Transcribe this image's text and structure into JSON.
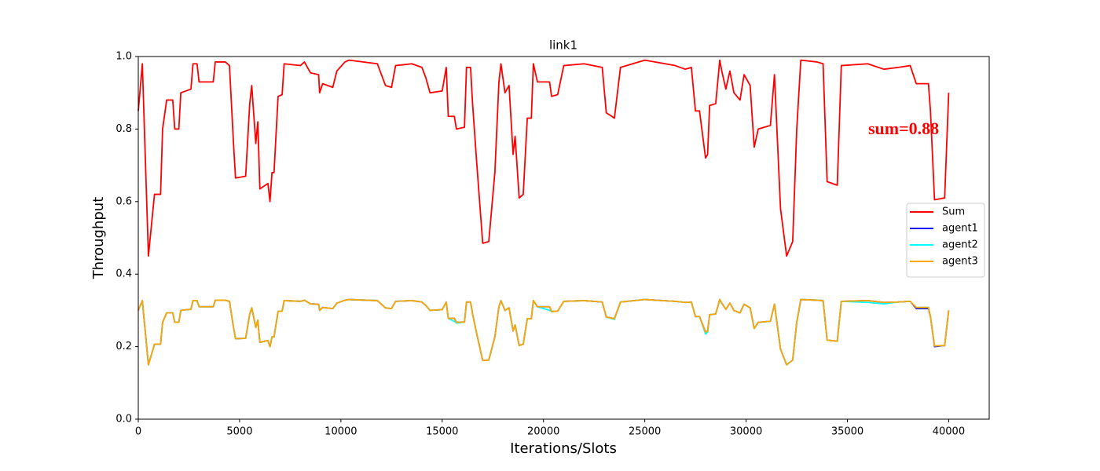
{
  "chart_data": {
    "type": "line",
    "title": "link1",
    "xlabel": "Iterations/Slots",
    "ylabel": "Throughput",
    "annotation": "sum=0.88",
    "xlim": [
      0,
      42000
    ],
    "xticks": [
      0,
      5000,
      10000,
      15000,
      20000,
      25000,
      30000,
      35000,
      40000
    ],
    "ylim": [
      0,
      1
    ],
    "yticks": [
      {
        "value": 0,
        "label": "0.0"
      },
      0.2,
      0.4,
      0.6,
      0.8,
      {
        "value": 1,
        "label": "1.0"
      }
    ],
    "legend": "center right",
    "x": [
      0,
      200,
      500,
      800,
      1100,
      1200,
      1400,
      1700,
      1800,
      2000,
      2100,
      2600,
      2700,
      2900,
      3000,
      3700,
      3800,
      4300,
      4500,
      4700,
      4800,
      5300,
      5500,
      5600,
      5800,
      5900,
      6000,
      6400,
      6500,
      6600,
      6700,
      6900,
      7100,
      7200,
      8000,
      8200,
      8500,
      8900,
      8950,
      9100,
      9600,
      9800,
      10200,
      10400,
      11800,
      12000,
      12200,
      12500,
      12700,
      13500,
      14000,
      14200,
      14400,
      15000,
      15200,
      15300,
      15600,
      15700,
      16100,
      16200,
      16400,
      16500,
      16700,
      17000,
      17300,
      17600,
      17800,
      17900,
      18100,
      18300,
      18500,
      18600,
      18800,
      19000,
      19200,
      19400,
      19500,
      19700,
      20300,
      20400,
      20700,
      21000,
      22000,
      22900,
      23100,
      23500,
      23800,
      25000,
      26500,
      27000,
      27300,
      27500,
      27700,
      28000,
      28100,
      28200,
      28500,
      28700,
      28800,
      29000,
      29200,
      29400,
      29700,
      29900,
      30200,
      30400,
      30600,
      31200,
      31400,
      31700,
      32000,
      32300,
      32500,
      32700,
      33500,
      33800,
      34000,
      34500,
      34700,
      36000,
      36800,
      37500,
      38100,
      38400,
      39000,
      39100,
      39300,
      39800,
      40000
    ],
    "series": [
      {
        "name": "Sum",
        "color": "#ff0000",
        "values": [
          0.85,
          0.98,
          0.45,
          0.62,
          0.62,
          0.8,
          0.88,
          0.88,
          0.8,
          0.8,
          0.9,
          0.91,
          0.98,
          0.98,
          0.93,
          0.93,
          0.985,
          0.985,
          0.975,
          0.76,
          0.665,
          0.67,
          0.87,
          0.92,
          0.76,
          0.82,
          0.635,
          0.65,
          0.6,
          0.68,
          0.68,
          0.89,
          0.895,
          0.98,
          0.975,
          0.985,
          0.955,
          0.95,
          0.9,
          0.925,
          0.915,
          0.96,
          0.985,
          0.99,
          0.98,
          0.95,
          0.92,
          0.915,
          0.975,
          0.98,
          0.97,
          0.94,
          0.9,
          0.905,
          0.97,
          0.835,
          0.835,
          0.8,
          0.805,
          0.97,
          0.97,
          0.87,
          0.71,
          0.485,
          0.49,
          0.68,
          0.93,
          0.98,
          0.9,
          0.92,
          0.73,
          0.78,
          0.61,
          0.62,
          0.83,
          0.83,
          0.98,
          0.93,
          0.93,
          0.89,
          0.895,
          0.975,
          0.98,
          0.97,
          0.845,
          0.83,
          0.97,
          0.99,
          0.975,
          0.965,
          0.97,
          0.85,
          0.85,
          0.72,
          0.73,
          0.865,
          0.87,
          0.99,
          0.96,
          0.91,
          0.96,
          0.9,
          0.88,
          0.95,
          0.92,
          0.75,
          0.8,
          0.81,
          0.95,
          0.58,
          0.45,
          0.49,
          0.8,
          0.99,
          0.985,
          0.98,
          0.655,
          0.645,
          0.975,
          0.98,
          0.965,
          0.97,
          0.975,
          0.925,
          0.925,
          0.85,
          0.605,
          0.61,
          0.9
        ]
      },
      {
        "name": "agent1",
        "color": "#0000ff",
        "values": [
          0.3,
          0.327,
          0.15,
          0.207,
          0.207,
          0.267,
          0.293,
          0.293,
          0.267,
          0.267,
          0.3,
          0.303,
          0.327,
          0.327,
          0.31,
          0.31,
          0.328,
          0.328,
          0.325,
          0.253,
          0.222,
          0.223,
          0.29,
          0.307,
          0.253,
          0.273,
          0.212,
          0.217,
          0.2,
          0.227,
          0.227,
          0.297,
          0.298,
          0.327,
          0.325,
          0.328,
          0.318,
          0.317,
          0.3,
          0.308,
          0.305,
          0.32,
          0.328,
          0.33,
          0.327,
          0.317,
          0.307,
          0.305,
          0.325,
          0.327,
          0.323,
          0.313,
          0.3,
          0.302,
          0.323,
          0.278,
          0.278,
          0.267,
          0.268,
          0.323,
          0.323,
          0.29,
          0.237,
          0.162,
          0.163,
          0.227,
          0.31,
          0.327,
          0.3,
          0.307,
          0.243,
          0.26,
          0.203,
          0.207,
          0.277,
          0.277,
          0.327,
          0.31,
          0.31,
          0.297,
          0.298,
          0.325,
          0.327,
          0.323,
          0.282,
          0.277,
          0.323,
          0.33,
          0.325,
          0.322,
          0.323,
          0.283,
          0.283,
          0.24,
          0.243,
          0.288,
          0.29,
          0.33,
          0.32,
          0.303,
          0.32,
          0.3,
          0.293,
          0.317,
          0.307,
          0.25,
          0.267,
          0.27,
          0.317,
          0.193,
          0.15,
          0.163,
          0.267,
          0.33,
          0.328,
          0.327,
          0.218,
          0.215,
          0.325,
          0.327,
          0.322,
          0.323,
          0.325,
          0.305,
          0.305,
          0.283,
          0.2,
          0.203,
          0.3
        ]
      },
      {
        "name": "agent2",
        "color": "#00ffff",
        "values": [
          0.3,
          0.327,
          0.15,
          0.207,
          0.207,
          0.267,
          0.293,
          0.293,
          0.267,
          0.267,
          0.3,
          0.303,
          0.327,
          0.327,
          0.31,
          0.31,
          0.328,
          0.328,
          0.325,
          0.253,
          0.222,
          0.223,
          0.29,
          0.307,
          0.253,
          0.273,
          0.212,
          0.217,
          0.2,
          0.227,
          0.227,
          0.297,
          0.298,
          0.327,
          0.325,
          0.328,
          0.318,
          0.317,
          0.3,
          0.308,
          0.305,
          0.32,
          0.328,
          0.33,
          0.327,
          0.317,
          0.307,
          0.305,
          0.325,
          0.327,
          0.323,
          0.313,
          0.3,
          0.302,
          0.323,
          0.278,
          0.27,
          0.265,
          0.268,
          0.323,
          0.323,
          0.29,
          0.237,
          0.162,
          0.163,
          0.227,
          0.31,
          0.327,
          0.3,
          0.307,
          0.243,
          0.26,
          0.203,
          0.207,
          0.277,
          0.277,
          0.327,
          0.31,
          0.3,
          0.297,
          0.298,
          0.325,
          0.327,
          0.323,
          0.282,
          0.275,
          0.323,
          0.33,
          0.325,
          0.322,
          0.323,
          0.283,
          0.283,
          0.235,
          0.24,
          0.288,
          0.29,
          0.33,
          0.32,
          0.303,
          0.32,
          0.3,
          0.293,
          0.317,
          0.307,
          0.25,
          0.267,
          0.27,
          0.317,
          0.193,
          0.15,
          0.163,
          0.267,
          0.33,
          0.328,
          0.327,
          0.218,
          0.215,
          0.325,
          0.322,
          0.318,
          0.323,
          0.325,
          0.308,
          0.308,
          0.283,
          0.202,
          0.203,
          0.3
        ]
      },
      {
        "name": "agent3",
        "color": "#ffa500",
        "values": [
          0.3,
          0.327,
          0.15,
          0.207,
          0.207,
          0.267,
          0.293,
          0.293,
          0.267,
          0.267,
          0.3,
          0.303,
          0.327,
          0.327,
          0.31,
          0.31,
          0.328,
          0.328,
          0.325,
          0.253,
          0.222,
          0.223,
          0.29,
          0.307,
          0.253,
          0.273,
          0.212,
          0.217,
          0.2,
          0.227,
          0.227,
          0.297,
          0.298,
          0.327,
          0.325,
          0.328,
          0.318,
          0.317,
          0.3,
          0.308,
          0.305,
          0.32,
          0.328,
          0.33,
          0.327,
          0.317,
          0.307,
          0.305,
          0.325,
          0.327,
          0.323,
          0.313,
          0.3,
          0.302,
          0.323,
          0.278,
          0.278,
          0.267,
          0.268,
          0.323,
          0.323,
          0.29,
          0.237,
          0.162,
          0.163,
          0.227,
          0.31,
          0.327,
          0.3,
          0.307,
          0.243,
          0.26,
          0.203,
          0.207,
          0.277,
          0.277,
          0.327,
          0.31,
          0.31,
          0.297,
          0.298,
          0.325,
          0.327,
          0.323,
          0.282,
          0.277,
          0.323,
          0.33,
          0.325,
          0.322,
          0.323,
          0.283,
          0.283,
          0.24,
          0.243,
          0.288,
          0.29,
          0.33,
          0.32,
          0.303,
          0.32,
          0.3,
          0.293,
          0.317,
          0.307,
          0.25,
          0.267,
          0.27,
          0.317,
          0.193,
          0.15,
          0.163,
          0.267,
          0.33,
          0.328,
          0.327,
          0.218,
          0.215,
          0.325,
          0.327,
          0.322,
          0.323,
          0.325,
          0.308,
          0.308,
          0.283,
          0.202,
          0.203,
          0.3
        ]
      }
    ]
  }
}
